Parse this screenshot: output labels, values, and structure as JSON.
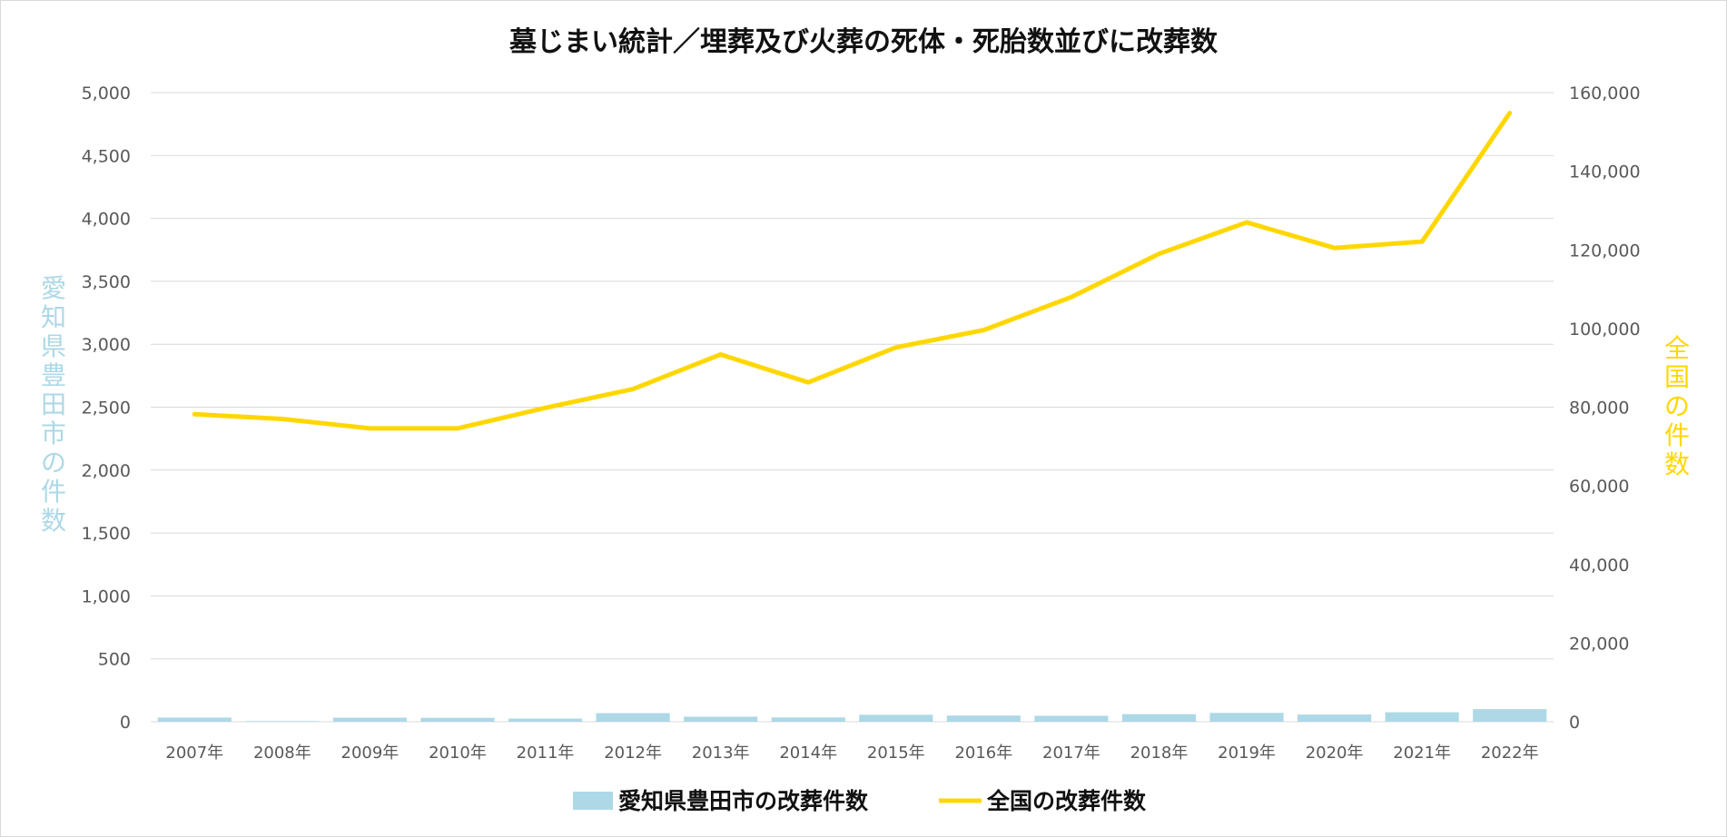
{
  "chart_data": {
    "type": "bar+line",
    "title": "墓じまい統計／埋葬及び火葬の死体・死胎数並びに改葬数",
    "categories": [
      "2007年",
      "2008年",
      "2009年",
      "2010年",
      "2011年",
      "2012年",
      "2013年",
      "2014年",
      "2015年",
      "2016年",
      "2017年",
      "2018年",
      "2019年",
      "2020年",
      "2021年",
      "2022年"
    ],
    "series": [
      {
        "name": "愛知県豊田市の改葬件数",
        "type": "bar",
        "axis": "left",
        "color": "#add8e6",
        "values": [
          33,
          5,
          32,
          31,
          25,
          68,
          40,
          34,
          55,
          49,
          47,
          60,
          70,
          57,
          75,
          100
        ]
      },
      {
        "name": "全国の改葬件数",
        "type": "line",
        "axis": "right",
        "color": "#ffd700",
        "values": [
          78200,
          77000,
          74600,
          74600,
          79800,
          84600,
          93400,
          86300,
          95200,
          99600,
          108000,
          119000,
          127000,
          120500,
          122100,
          154800
        ]
      }
    ],
    "y_left": {
      "label": "愛知県豊田市の件数",
      "min": 0,
      "max": 5000,
      "step": 500,
      "ticks": [
        "0",
        "500",
        "1,000",
        "1,500",
        "2,000",
        "2,500",
        "3,000",
        "3,500",
        "4,000",
        "4,500",
        "5,000"
      ]
    },
    "y_right": {
      "label": "全国の件数",
      "min": 0,
      "max": 160000,
      "step": 20000,
      "ticks": [
        "0",
        "20,000",
        "40,000",
        "60,000",
        "80,000",
        "100,000",
        "120,000",
        "140,000",
        "160,000"
      ]
    },
    "grid": true,
    "legend_position": "bottom"
  }
}
